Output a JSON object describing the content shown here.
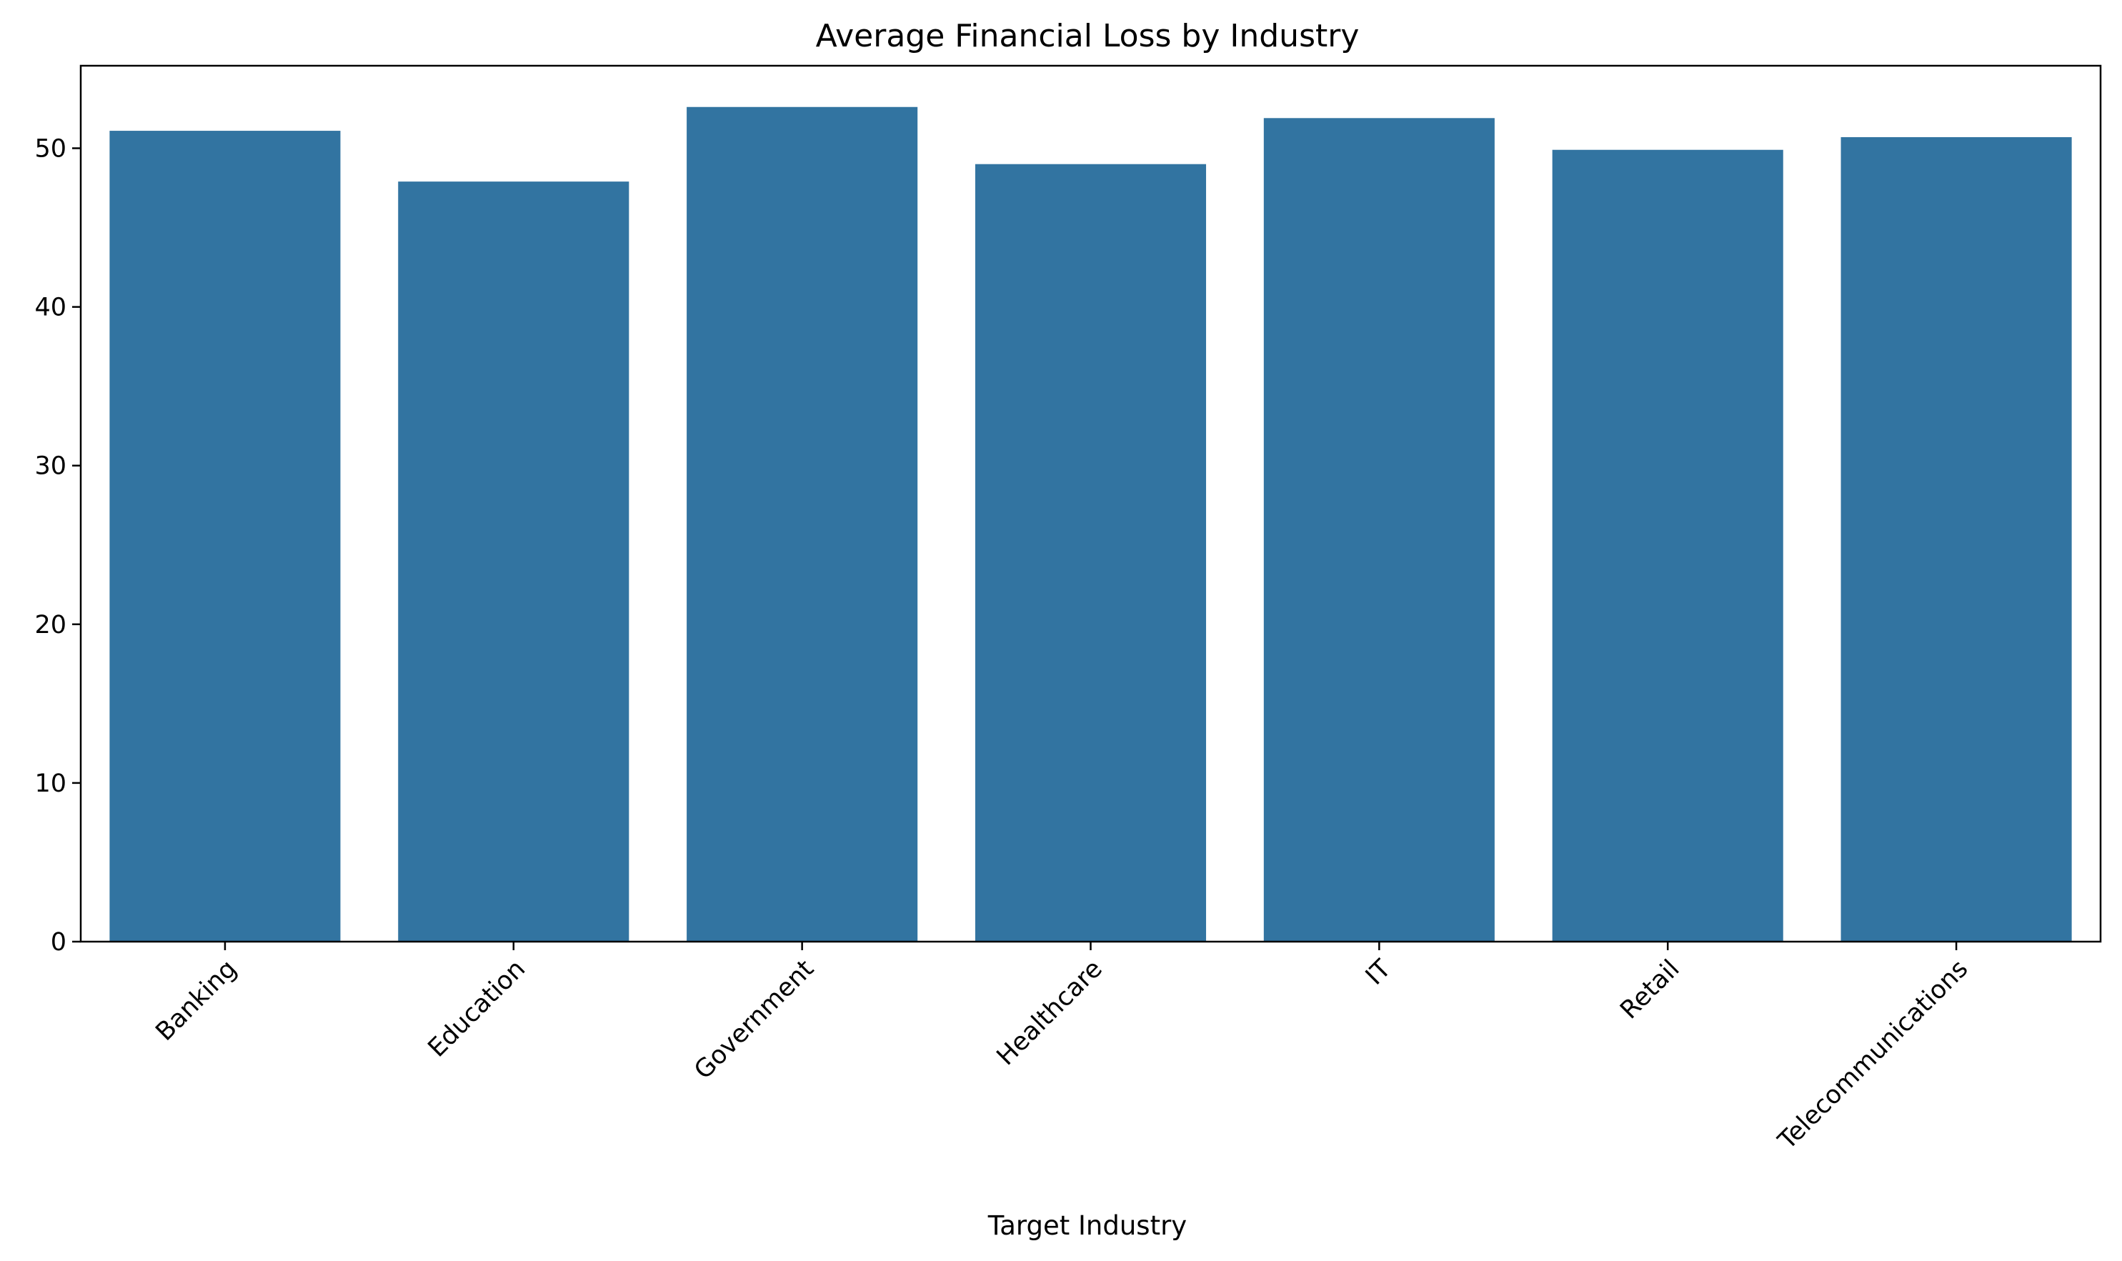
{
  "chart_data": {
    "type": "bar",
    "title": "Average Financial Loss by Industry",
    "xlabel": "Target Industry",
    "ylabel": "",
    "categories": [
      "Banking",
      "Education",
      "Government",
      "Healthcare",
      "IT",
      "Retail",
      "Telecommunications"
    ],
    "values": [
      51.1,
      47.9,
      52.6,
      49.0,
      51.9,
      49.9,
      50.7
    ],
    "ylim": [
      0,
      55.2
    ],
    "yticks": [
      0,
      10,
      20,
      30,
      40,
      50
    ],
    "ytick_labels": [
      "0",
      "10",
      "20",
      "30",
      "40",
      "50"
    ],
    "bar_color": "#3274a1",
    "grid": false,
    "legend": "none"
  }
}
